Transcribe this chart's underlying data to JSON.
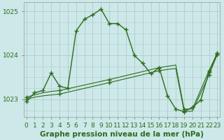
{
  "title": "Graphe pression niveau de la mer (hPa)",
  "background_color": "#cce8e8",
  "grid_color": "#b0cccc",
  "line_color": "#2d6b1e",
  "ylim": [
    1022.6,
    1025.2
  ],
  "yticks": [
    1023,
    1024,
    1025
  ],
  "xlim": [
    -0.3,
    23.3
  ],
  "xticks": [
    0,
    1,
    2,
    3,
    4,
    5,
    6,
    7,
    8,
    9,
    10,
    11,
    12,
    13,
    14,
    15,
    16,
    17,
    18,
    19,
    20,
    21,
    22,
    23
  ],
  "series1_x": [
    0,
    1,
    2,
    3,
    4,
    5,
    6,
    7,
    8,
    9,
    10,
    11,
    12,
    13,
    14,
    15,
    16,
    17,
    18,
    19,
    20,
    21,
    22,
    23
  ],
  "series1_y": [
    1022.95,
    1023.15,
    1023.2,
    1023.6,
    1023.3,
    1023.25,
    1024.55,
    1024.82,
    1024.92,
    1025.05,
    1024.72,
    1024.72,
    1024.58,
    1024.0,
    1023.82,
    1023.58,
    1023.72,
    1023.08,
    1022.78,
    1022.72,
    1022.82,
    1022.98,
    1023.62,
    1024.05
  ],
  "series2_x": [
    0,
    1,
    2,
    3,
    4,
    10,
    16,
    17,
    18,
    19,
    20,
    22,
    23
  ],
  "series2_y": [
    1023.05,
    1023.1,
    1023.15,
    1023.18,
    1023.2,
    1023.45,
    1023.72,
    1023.75,
    1023.78,
    1022.78,
    1022.78,
    1023.65,
    1024.05
  ],
  "series2_markers_x": [
    0,
    4,
    10,
    16,
    19,
    22,
    23
  ],
  "series2_markers_y": [
    1023.05,
    1023.2,
    1023.45,
    1023.72,
    1022.78,
    1023.65,
    1024.05
  ],
  "series3_x": [
    0,
    1,
    2,
    3,
    4,
    10,
    16,
    17,
    18,
    19,
    20,
    22,
    23
  ],
  "series3_y": [
    1023.0,
    1023.05,
    1023.08,
    1023.1,
    1023.12,
    1023.38,
    1023.65,
    1023.68,
    1023.7,
    1022.73,
    1022.73,
    1023.55,
    1024.02
  ],
  "series3_markers_x": [
    0,
    4,
    10,
    16,
    19,
    22,
    23
  ],
  "series3_markers_y": [
    1023.0,
    1023.12,
    1023.38,
    1023.65,
    1022.73,
    1023.55,
    1024.02
  ],
  "tick_fontsize": 6.5,
  "title_fontsize": 7.5
}
